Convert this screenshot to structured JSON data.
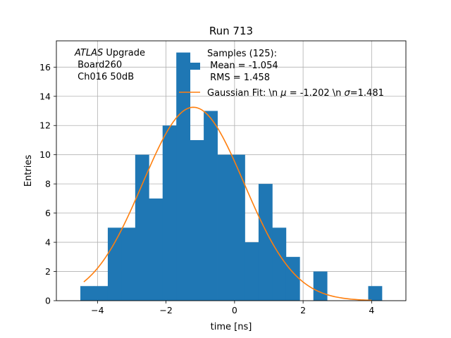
{
  "chart_data": {
    "type": "bar",
    "title": "Run 713",
    "xlabel": "time [ns]",
    "ylabel": "Entries",
    "xlim": [
      -5.2,
      5.0
    ],
    "ylim": [
      0,
      17.8
    ],
    "xticks": [
      -4,
      -2,
      0,
      2,
      4
    ],
    "xtick_labels": [
      "−4",
      "−2",
      "0",
      "2",
      "4"
    ],
    "yticks": [
      0,
      2,
      4,
      6,
      8,
      10,
      12,
      14,
      16
    ],
    "ytick_labels": [
      "0",
      "2",
      "4",
      "6",
      "8",
      "10",
      "12",
      "14",
      "16"
    ],
    "grid": true,
    "bin_edges": [
      -4.5,
      -4.1,
      -3.7,
      -3.3,
      -2.9,
      -2.5,
      -2.1,
      -1.7,
      -1.3,
      -0.9,
      -0.5,
      -0.1,
      0.3,
      0.7,
      1.1,
      1.5,
      1.9,
      2.3,
      2.7,
      3.1,
      3.5,
      3.9,
      4.3
    ],
    "counts": [
      1,
      1,
      5,
      5,
      10,
      7,
      12,
      17,
      11,
      13,
      10,
      10,
      4,
      8,
      5,
      3,
      0,
      2,
      0,
      0,
      0,
      1
    ],
    "histogram_color": "#1f77b4",
    "fit": {
      "mu": -1.202,
      "sigma": 1.481,
      "peak": 13.25,
      "x_range": [
        -4.4,
        4.0
      ],
      "color": "#ff7f0e"
    },
    "annotation": {
      "italic": "ATLAS",
      "line1_rest": " Upgrade",
      "line2": " Board260",
      "line3": " Ch016 50dB"
    },
    "legend": {
      "placement": "top-right",
      "samples_line1": "Samples (125):",
      "samples_line2": " Mean = -1.054",
      "samples_line3": " RMS = 1.458",
      "fit_prefix": "Gaussian Fit: \\n ",
      "fit_mu_symbol": "μ",
      "fit_mid": " = -1.202 \\n ",
      "fit_sigma_symbol": "σ",
      "fit_suffix": "=1.481"
    }
  }
}
